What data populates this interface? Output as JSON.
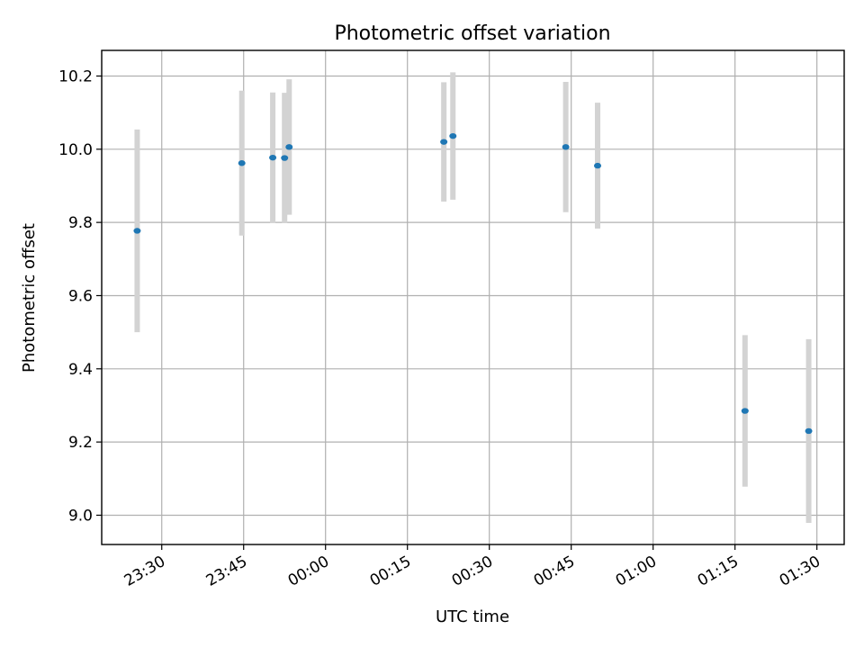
{
  "chart_data": {
    "type": "scatter",
    "title": "Photometric offset variation",
    "xlabel": "UTC time",
    "ylabel": "Photometric offset",
    "x_axis_kind": "time",
    "xlim": [
      "23:19",
      "01:35"
    ],
    "ylim": [
      8.92,
      10.27
    ],
    "x_ticks": [
      "23:30",
      "23:45",
      "00:00",
      "00:15",
      "00:30",
      "00:45",
      "01:00",
      "01:15",
      "01:30"
    ],
    "y_ticks": [
      9.0,
      9.2,
      9.4,
      9.6,
      9.8,
      10.0,
      10.2
    ],
    "y_tick_labels": [
      "9.0",
      "9.2",
      "9.4",
      "9.6",
      "9.8",
      "10.0",
      "10.2"
    ],
    "grid": true,
    "marker_color": "#1f77b4",
    "errorbar_color": "#d3d3d3",
    "series": [
      {
        "points": [
          {
            "x": "23:25:30",
            "y": 9.777,
            "err": 0.277
          },
          {
            "x": "23:44:40",
            "y": 9.962,
            "err": 0.198
          },
          {
            "x": "23:50:20",
            "y": 9.977,
            "err": 0.178
          },
          {
            "x": "23:52:30",
            "y": 9.976,
            "err": 0.178
          },
          {
            "x": "23:53:20",
            "y": 10.006,
            "err": 0.185
          },
          {
            "x": "00:21:40",
            "y": 10.02,
            "err": 0.163
          },
          {
            "x": "00:23:20",
            "y": 10.036,
            "err": 0.174
          },
          {
            "x": "00:44:00",
            "y": 10.006,
            "err": 0.178
          },
          {
            "x": "00:49:50",
            "y": 9.955,
            "err": 0.172
          },
          {
            "x": "01:16:50",
            "y": 9.285,
            "err": 0.207
          },
          {
            "x": "01:28:30",
            "y": 9.23,
            "err": 0.251
          }
        ]
      }
    ]
  }
}
